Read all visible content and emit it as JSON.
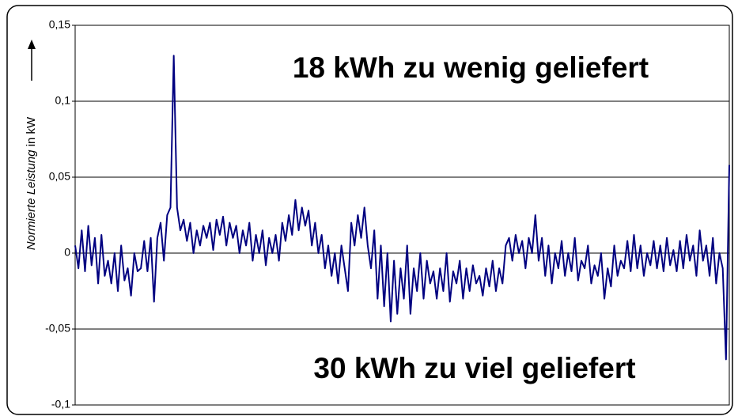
{
  "chart_data": {
    "type": "line",
    "ylabel_italic": "Normierte Leistung",
    "ylabel_unit": "in kW",
    "annotations": [
      "18 kWh zu wenig geliefert",
      "30 kWh zu viel geliefert"
    ],
    "color": "#000080",
    "ylim": [
      -0.1,
      0.15
    ],
    "yticks": [
      {
        "value": -0.1,
        "label": "-0,1"
      },
      {
        "value": -0.05,
        "label": "-0,05"
      },
      0,
      {
        "value": 0.05,
        "label": "0,05"
      },
      {
        "value": 0.1,
        "label": "0,1"
      },
      {
        "value": 0.15,
        "label": "0,15"
      }
    ],
    "grid": true,
    "values": [
      0.005,
      -0.01,
      0.015,
      -0.012,
      0.018,
      -0.008,
      0.01,
      -0.02,
      0.012,
      -0.015,
      -0.005,
      -0.02,
      0.0,
      -0.025,
      0.005,
      -0.018,
      -0.01,
      -0.028,
      0.0,
      -0.012,
      -0.01,
      0.008,
      -0.012,
      0.01,
      -0.032,
      0.01,
      0.02,
      -0.005,
      0.025,
      0.03,
      0.13,
      0.03,
      0.015,
      0.022,
      0.008,
      0.02,
      0.0,
      0.015,
      0.005,
      0.018,
      0.01,
      0.02,
      0.002,
      0.022,
      0.012,
      0.024,
      0.005,
      0.02,
      0.01,
      0.018,
      0.0,
      0.015,
      0.005,
      0.02,
      -0.005,
      0.012,
      0.0,
      0.015,
      -0.008,
      0.01,
      0.0,
      0.012,
      -0.005,
      0.02,
      0.008,
      0.025,
      0.012,
      0.035,
      0.015,
      0.03,
      0.018,
      0.028,
      0.005,
      0.02,
      0.0,
      0.012,
      -0.01,
      0.005,
      -0.015,
      0.0,
      -0.02,
      0.005,
      -0.01,
      -0.025,
      0.02,
      0.005,
      0.025,
      0.01,
      0.03,
      0.005,
      -0.01,
      0.015,
      -0.03,
      0.005,
      -0.035,
      0.0,
      -0.045,
      -0.005,
      -0.04,
      -0.01,
      -0.03,
      0.005,
      -0.04,
      -0.01,
      -0.025,
      0.0,
      -0.03,
      -0.005,
      -0.02,
      -0.012,
      -0.03,
      -0.01,
      -0.025,
      0.0,
      -0.032,
      -0.012,
      -0.02,
      -0.005,
      -0.03,
      -0.01,
      -0.025,
      -0.008,
      -0.02,
      -0.015,
      -0.028,
      -0.01,
      -0.022,
      -0.005,
      -0.025,
      -0.01,
      -0.02,
      0.005,
      0.01,
      -0.005,
      0.012,
      0.0,
      0.008,
      -0.01,
      0.01,
      0.0,
      0.025,
      -0.005,
      0.01,
      -0.015,
      0.005,
      -0.02,
      0.0,
      -0.01,
      0.008,
      -0.015,
      0.0,
      -0.012,
      0.01,
      -0.018,
      -0.005,
      -0.01,
      0.005,
      -0.02,
      -0.008,
      -0.015,
      0.0,
      -0.03,
      -0.01,
      -0.022,
      0.005,
      -0.015,
      -0.005,
      -0.01,
      0.008,
      -0.012,
      0.012,
      -0.01,
      0.005,
      -0.015,
      0.0,
      -0.008,
      0.008,
      -0.01,
      0.005,
      -0.012,
      0.01,
      -0.008,
      0.002,
      -0.012,
      0.008,
      -0.01,
      0.012,
      -0.005,
      0.005,
      -0.015,
      0.015,
      -0.005,
      0.005,
      -0.015,
      0.01,
      -0.02,
      0.0,
      -0.01,
      -0.07,
      0.058
    ]
  }
}
